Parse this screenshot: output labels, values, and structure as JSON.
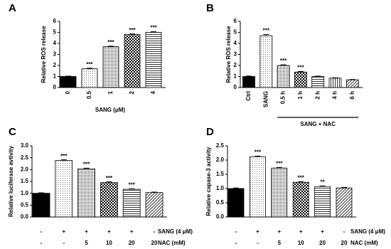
{
  "chart_data": [
    {
      "type": "bar",
      "panel": "A",
      "y_label": "Relative ROS release",
      "x_label": "SANG (μM)",
      "categories": [
        "0",
        "0.5",
        "1",
        "2",
        "4"
      ],
      "values": [
        1.0,
        1.7,
        3.7,
        4.8,
        5.0
      ],
      "errors": [
        0.03,
        0.05,
        0.05,
        0.06,
        0.06
      ],
      "significance": [
        null,
        "***",
        "***",
        "***",
        "***"
      ],
      "ylim": [
        0,
        6
      ],
      "yticks": [
        0,
        1,
        2,
        3,
        4,
        5,
        6
      ]
    },
    {
      "type": "bar",
      "panel": "B",
      "y_label": "Relative ROS release",
      "group_label": "SANG + NAC",
      "categories": [
        "Ctrl",
        "SANG",
        "0.5 h",
        "1 h",
        "2 h",
        "4 h",
        "6 h"
      ],
      "values": [
        1.0,
        4.7,
        2.0,
        1.4,
        1.0,
        0.85,
        0.7
      ],
      "errors": [
        0.04,
        0.1,
        0.06,
        0.05,
        0.03,
        0.03,
        0.03
      ],
      "significance": [
        null,
        "***",
        "***",
        "***",
        null,
        null,
        null
      ],
      "ylim": [
        0,
        6
      ],
      "yticks": [
        0,
        1,
        2,
        3,
        4,
        5,
        6
      ]
    },
    {
      "type": "bar",
      "panel": "C",
      "y_label": "Relative luciferase avtivity",
      "categories": [
        null,
        null,
        null,
        null,
        null,
        null
      ],
      "x_rows": [
        {
          "name": "SANG (4 μM)",
          "values": [
            "-",
            "+",
            "+",
            "+",
            "+",
            "-"
          ]
        },
        {
          "name": "NAC (mM)",
          "values": [
            "-",
            "-",
            "5",
            "10",
            "20",
            "20"
          ]
        }
      ],
      "values": [
        1.0,
        2.38,
        2.03,
        1.45,
        1.17,
        1.03
      ],
      "errors": [
        0.02,
        0.03,
        0.03,
        0.03,
        0.02,
        0.02
      ],
      "significance": [
        null,
        "***",
        "***",
        "***",
        "***",
        null
      ],
      "ylim": [
        0,
        3
      ],
      "yticks": [
        {
          "value": 0,
          "label": "0.0"
        },
        0.5,
        {
          "value": 1,
          "label": "1.0"
        },
        1.5,
        {
          "value": 2,
          "label": "2.0"
        },
        2.5,
        {
          "value": 3,
          "label": "3.0"
        }
      ]
    },
    {
      "type": "bar",
      "panel": "D",
      "y_label": "Relative capase-3 activity",
      "categories": [
        null,
        null,
        null,
        null,
        null,
        null
      ],
      "x_rows": [
        {
          "name": "SANG (4 μM)",
          "values": [
            "-",
            "+",
            "+",
            "+",
            "+",
            "-"
          ]
        },
        {
          "name": "NAC (mM)",
          "values": [
            "-",
            "-",
            "5",
            "10",
            "20",
            "20"
          ]
        }
      ],
      "values": [
        1.0,
        2.12,
        1.72,
        1.22,
        1.07,
        1.02
      ],
      "errors": [
        0.02,
        0.02,
        0.02,
        0.02,
        0.02,
        0.02
      ],
      "significance": [
        null,
        "***",
        "***",
        "***",
        "**",
        null
      ],
      "ylim": [
        0,
        2.5
      ],
      "yticks": [
        {
          "value": 0,
          "label": "0.0"
        },
        0.5,
        {
          "value": 1,
          "label": "1.0"
        },
        1.5,
        {
          "value": 2,
          "label": "2.0"
        },
        2.5
      ]
    }
  ]
}
